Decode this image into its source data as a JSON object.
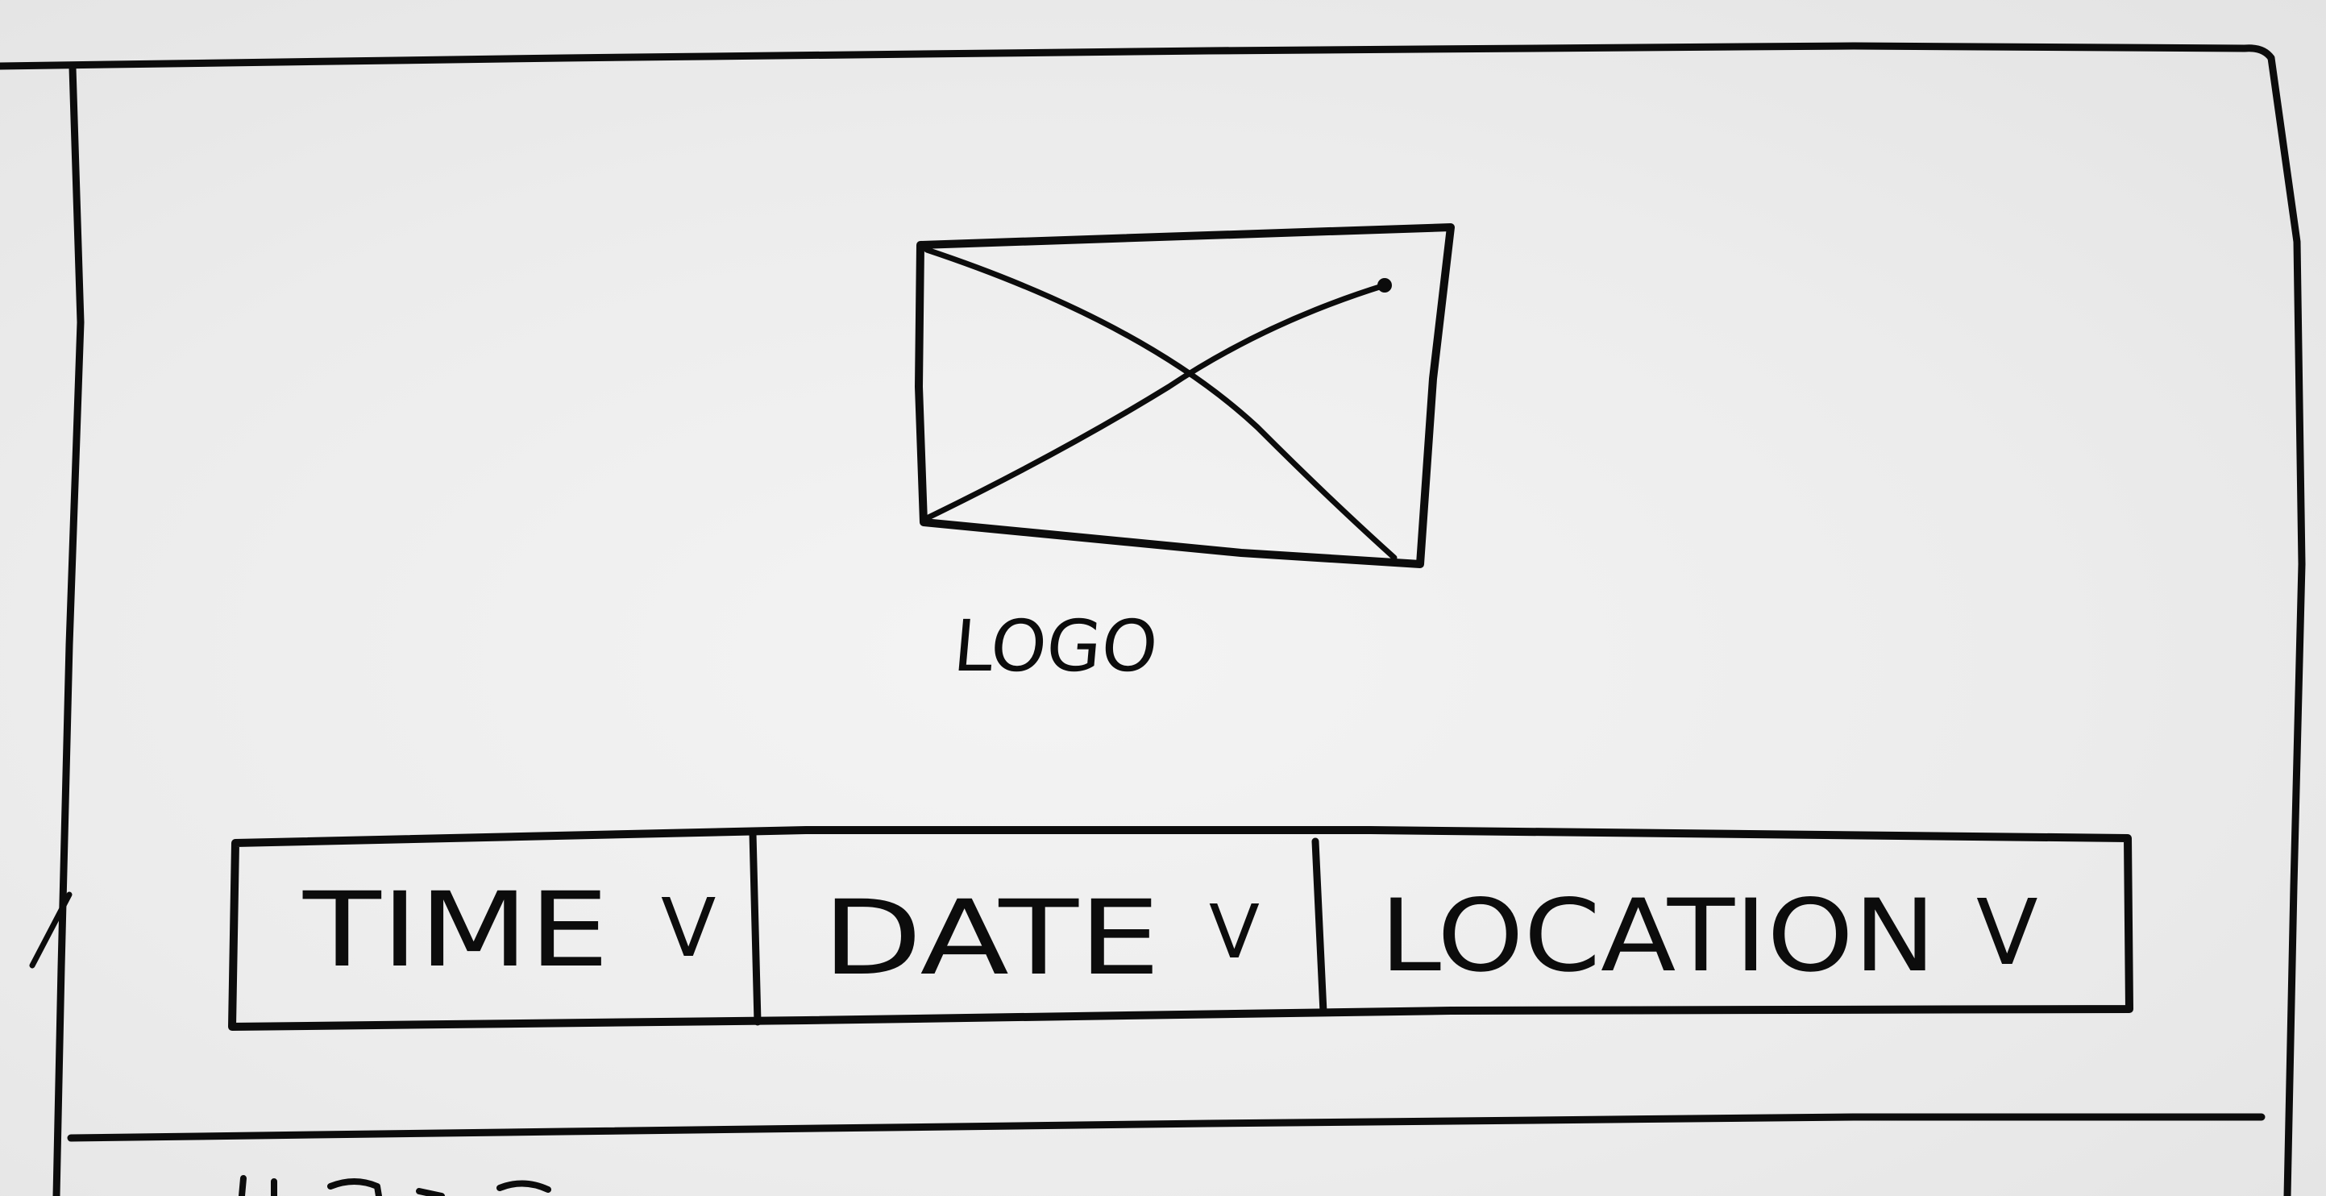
{
  "logo": {
    "label": "LOGO",
    "icon": "image-placeholder-icon"
  },
  "filters": [
    {
      "label": "TIME",
      "icon": "chevron-down-icon",
      "glyph": "V"
    },
    {
      "label": "DATE",
      "icon": "chevron-down-icon",
      "glyph": "V"
    },
    {
      "label": "LOCATION",
      "icon": "chevron-down-icon",
      "glyph": "V"
    }
  ],
  "colors": {
    "ink": "#0c0c0c",
    "paper": "#eeeeee"
  }
}
